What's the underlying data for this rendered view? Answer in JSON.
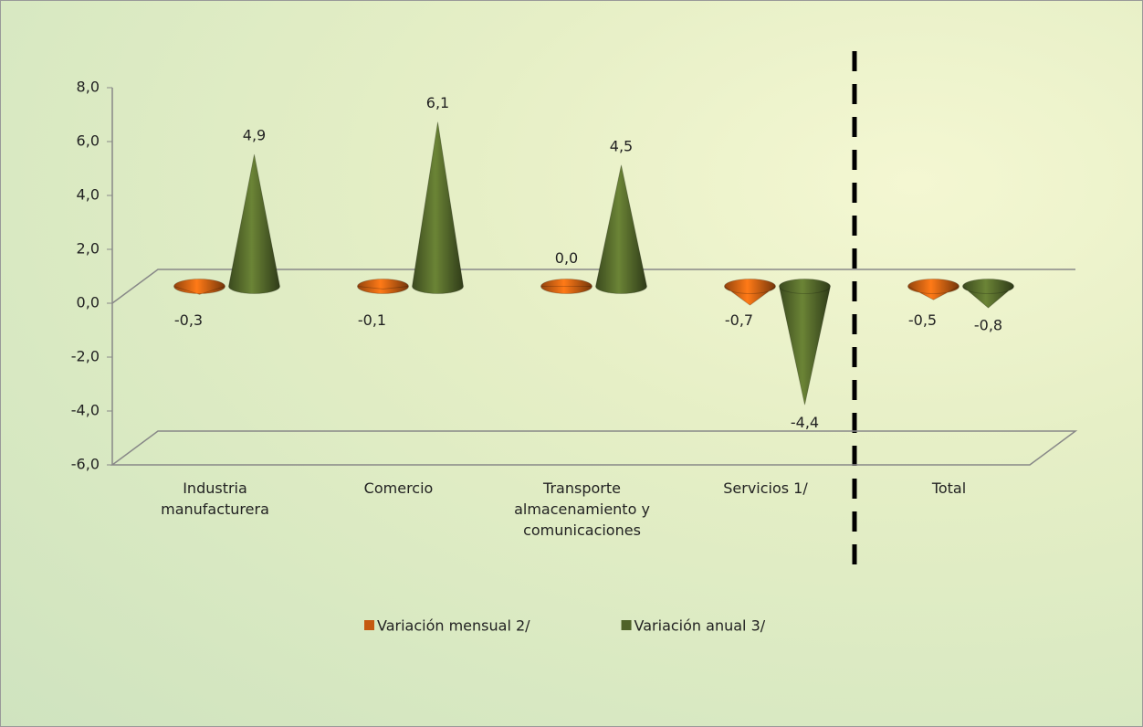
{
  "chart_data": {
    "type": "cone3d",
    "categories": [
      "Industria manufacturera",
      "Comercio",
      "Transporte almacenamiento y comunicaciones",
      "Servicios 1/",
      "Total"
    ],
    "series": [
      {
        "name": "Variación mensual 2/",
        "color": "#c55a11",
        "values": [
          -0.3,
          -0.1,
          0.0,
          -0.7,
          -0.5
        ],
        "value_labels": [
          "-0,3",
          "-0,1",
          "0,0",
          "-0,7",
          "-0,5"
        ]
      },
      {
        "name": "Variación anual 3/",
        "color": "#4f6228",
        "values": [
          4.9,
          6.1,
          4.5,
          -4.4,
          -0.8
        ],
        "value_labels": [
          "4,9",
          "6,1",
          "4,5",
          "-4,4",
          "-0,8"
        ]
      }
    ],
    "ylim": [
      -6,
      8
    ],
    "yticks": [
      {
        "value": -6,
        "label": "-6,0"
      },
      {
        "value": -4,
        "label": "-4,0"
      },
      {
        "value": -2,
        "label": "-2,0"
      },
      {
        "value": 0,
        "label": "0,0"
      },
      {
        "value": 2,
        "label": "2,0"
      },
      {
        "value": 4,
        "label": "4,0"
      },
      {
        "value": 6,
        "label": "6,0"
      },
      {
        "value": 8,
        "label": "8,0"
      }
    ],
    "grid": false
  }
}
